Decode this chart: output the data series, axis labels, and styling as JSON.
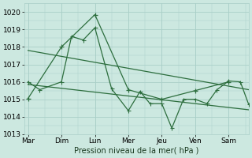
{
  "background_color": "#cce8e0",
  "grid_color": "#aacfc8",
  "line_color": "#2d6e3e",
  "xlabel": "Pression niveau de la mer( hPa )",
  "ylim": [
    1013.0,
    1020.5
  ],
  "yticks": [
    1013,
    1014,
    1015,
    1016,
    1017,
    1018,
    1019,
    1020
  ],
  "x_labels": [
    "Mar",
    "Dim",
    "Lun",
    "Mer",
    "Jeu",
    "Ven",
    "Sam"
  ],
  "x_positions": [
    0,
    1,
    2,
    3,
    4,
    5,
    6
  ],
  "xlim": [
    -0.1,
    6.6
  ],
  "series1_x": [
    0,
    1,
    2,
    3,
    4,
    5,
    6
  ],
  "series1_y": [
    1015.05,
    1018.0,
    1019.85,
    1015.55,
    1015.0,
    1015.5,
    1016.0
  ],
  "series2_x": [
    0,
    0.35,
    1,
    1.3,
    1.65,
    2.0,
    2.5,
    3.0,
    3.35,
    3.65,
    4.0,
    4.3,
    4.65,
    5.0,
    5.35,
    5.65,
    6.0,
    6.35,
    6.6
  ],
  "series2_y": [
    1016.0,
    1015.55,
    1016.0,
    1018.6,
    1018.4,
    1019.1,
    1015.6,
    1014.35,
    1015.45,
    1014.75,
    1014.75,
    1013.35,
    1015.0,
    1015.0,
    1014.75,
    1015.55,
    1016.05,
    1016.0,
    1014.7
  ],
  "trend1_x": [
    0,
    6.6
  ],
  "trend1_y": [
    1017.8,
    1015.55
  ],
  "trend2_x": [
    0,
    6.6
  ],
  "trend2_y": [
    1015.85,
    1014.4
  ],
  "marker_size1": 2.5,
  "marker_size2": 2.0,
  "linewidth": 0.9,
  "xlabel_fontsize": 7,
  "tick_fontsize": 6.5
}
